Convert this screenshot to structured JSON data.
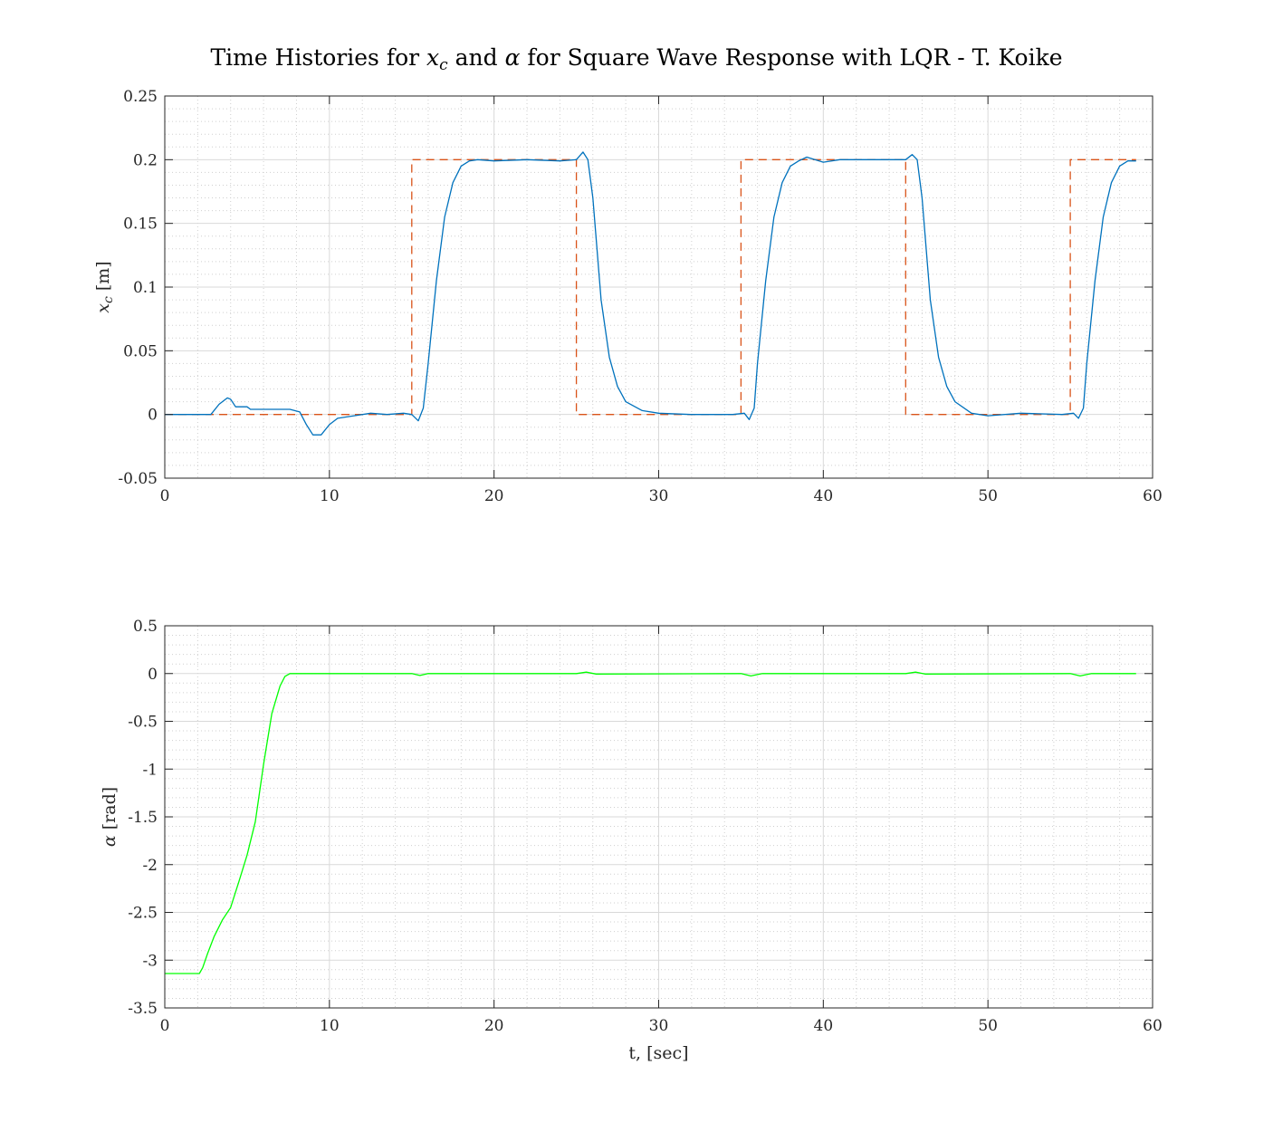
{
  "figure": {
    "title_parts": {
      "pre": "Time Histories for ",
      "xc_var": "x",
      "xc_sub": "c",
      "mid": " and ",
      "alpha": "α",
      "post": " for Square Wave Response with LQR - T. Koike"
    }
  },
  "colors": {
    "measured": "#0072BD",
    "reference": "#D95319",
    "alpha": "#00FF00",
    "grid_major": "#d9d9d9",
    "grid_minor": "#cfcfcf",
    "axis": "#262626"
  },
  "chart_data": [
    {
      "type": "line",
      "ylabel_parts": {
        "var": "x",
        "sub": "c",
        "unit": " [m]"
      },
      "xlabel": "",
      "xlim": [
        0,
        60
      ],
      "ylim": [
        -0.05,
        0.25
      ],
      "xticks": [
        "0",
        "10",
        "20",
        "30",
        "40",
        "50",
        "60"
      ],
      "yticks": [
        "-0.05",
        "0",
        "0.05",
        "0.1",
        "0.15",
        "0.2",
        "0.25"
      ],
      "grid": "major and minor",
      "series": [
        {
          "style": "dashed",
          "x": [
            0,
            15,
            15,
            25,
            25,
            35,
            35,
            45,
            45,
            55,
            55,
            59
          ],
          "y": [
            0,
            0,
            0.2,
            0.2,
            0,
            0,
            0.2,
            0.2,
            0,
            0,
            0.2,
            0.2
          ]
        },
        {
          "style": "solid",
          "x": [
            0,
            2.8,
            3.3,
            3.8,
            4.0,
            4.3,
            5.0,
            5.2,
            7.6,
            8.2,
            8.6,
            9.0,
            9.5,
            10.0,
            10.5,
            11.5,
            12.5,
            13.5,
            14.5,
            15.0,
            15.4,
            15.7,
            16.0,
            16.5,
            17.0,
            17.5,
            18.0,
            18.5,
            19.0,
            20.0,
            22.0,
            24.0,
            25.0,
            25.4,
            25.7,
            26.0,
            26.5,
            27.0,
            27.5,
            28.0,
            29.0,
            30.0,
            32.0,
            34.5,
            35.2,
            35.5,
            35.8,
            36.0,
            36.5,
            37.0,
            37.5,
            38.0,
            38.5,
            39.0,
            40.0,
            41.0,
            43.0,
            45.0,
            45.4,
            45.7,
            46.0,
            46.5,
            47.0,
            47.5,
            48.0,
            49.0,
            50.0,
            52.0,
            54.5,
            55.2,
            55.5,
            55.8,
            56.0,
            56.5,
            57.0,
            57.5,
            58.0,
            58.5,
            59.0
          ],
          "y": [
            0,
            0,
            0.008,
            0.013,
            0.012,
            0.006,
            0.006,
            0.004,
            0.004,
            0.002,
            -0.008,
            -0.016,
            -0.016,
            -0.008,
            -0.003,
            -0.001,
            0.001,
            0,
            0.001,
            0,
            -0.005,
            0.005,
            0.04,
            0.105,
            0.155,
            0.182,
            0.195,
            0.199,
            0.2,
            0.199,
            0.2,
            0.199,
            0.2,
            0.206,
            0.2,
            0.17,
            0.09,
            0.045,
            0.022,
            0.01,
            0.003,
            0.001,
            0,
            0,
            0.001,
            -0.004,
            0.005,
            0.04,
            0.105,
            0.155,
            0.182,
            0.195,
            0.199,
            0.202,
            0.198,
            0.2,
            0.2,
            0.2,
            0.204,
            0.2,
            0.17,
            0.09,
            0.045,
            0.022,
            0.01,
            0.001,
            -0.001,
            0.001,
            0,
            0.001,
            -0.003,
            0.005,
            0.04,
            0.105,
            0.155,
            0.182,
            0.195,
            0.199,
            0.199
          ]
        }
      ]
    },
    {
      "type": "line",
      "ylabel_parts": {
        "var": "α",
        "sub": "",
        "unit": " [rad]"
      },
      "xlabel": "t, [sec]",
      "xlim": [
        0,
        60
      ],
      "ylim": [
        -3.5,
        0.5
      ],
      "xticks": [
        "0",
        "10",
        "20",
        "30",
        "40",
        "50",
        "60"
      ],
      "yticks": [
        "-3.5",
        "-3",
        "-2.5",
        "-2",
        "-1.5",
        "-1",
        "-0.5",
        "0",
        "0.5"
      ],
      "grid": "major and minor",
      "series": [
        {
          "style": "solid",
          "x": [
            0,
            2.1,
            2.3,
            2.6,
            3.0,
            3.5,
            4.0,
            4.5,
            5.0,
            5.5,
            6.0,
            6.5,
            7.0,
            7.3,
            7.6,
            8.0,
            10.0,
            15.0,
            15.5,
            16.0,
            16.5,
            25.0,
            25.6,
            26.2,
            35.0,
            35.6,
            36.3,
            45.0,
            45.6,
            46.2,
            55.0,
            55.6,
            56.3,
            59.0
          ],
          "y": [
            -3.14,
            -3.14,
            -3.08,
            -2.93,
            -2.75,
            -2.58,
            -2.45,
            -2.18,
            -1.9,
            -1.55,
            -0.95,
            -0.42,
            -0.13,
            -0.03,
            0,
            0,
            0,
            0,
            -0.02,
            0,
            0,
            0,
            0.015,
            -0.005,
            0,
            -0.025,
            0,
            0,
            0.015,
            -0.005,
            0,
            -0.025,
            0,
            0
          ]
        }
      ]
    }
  ]
}
